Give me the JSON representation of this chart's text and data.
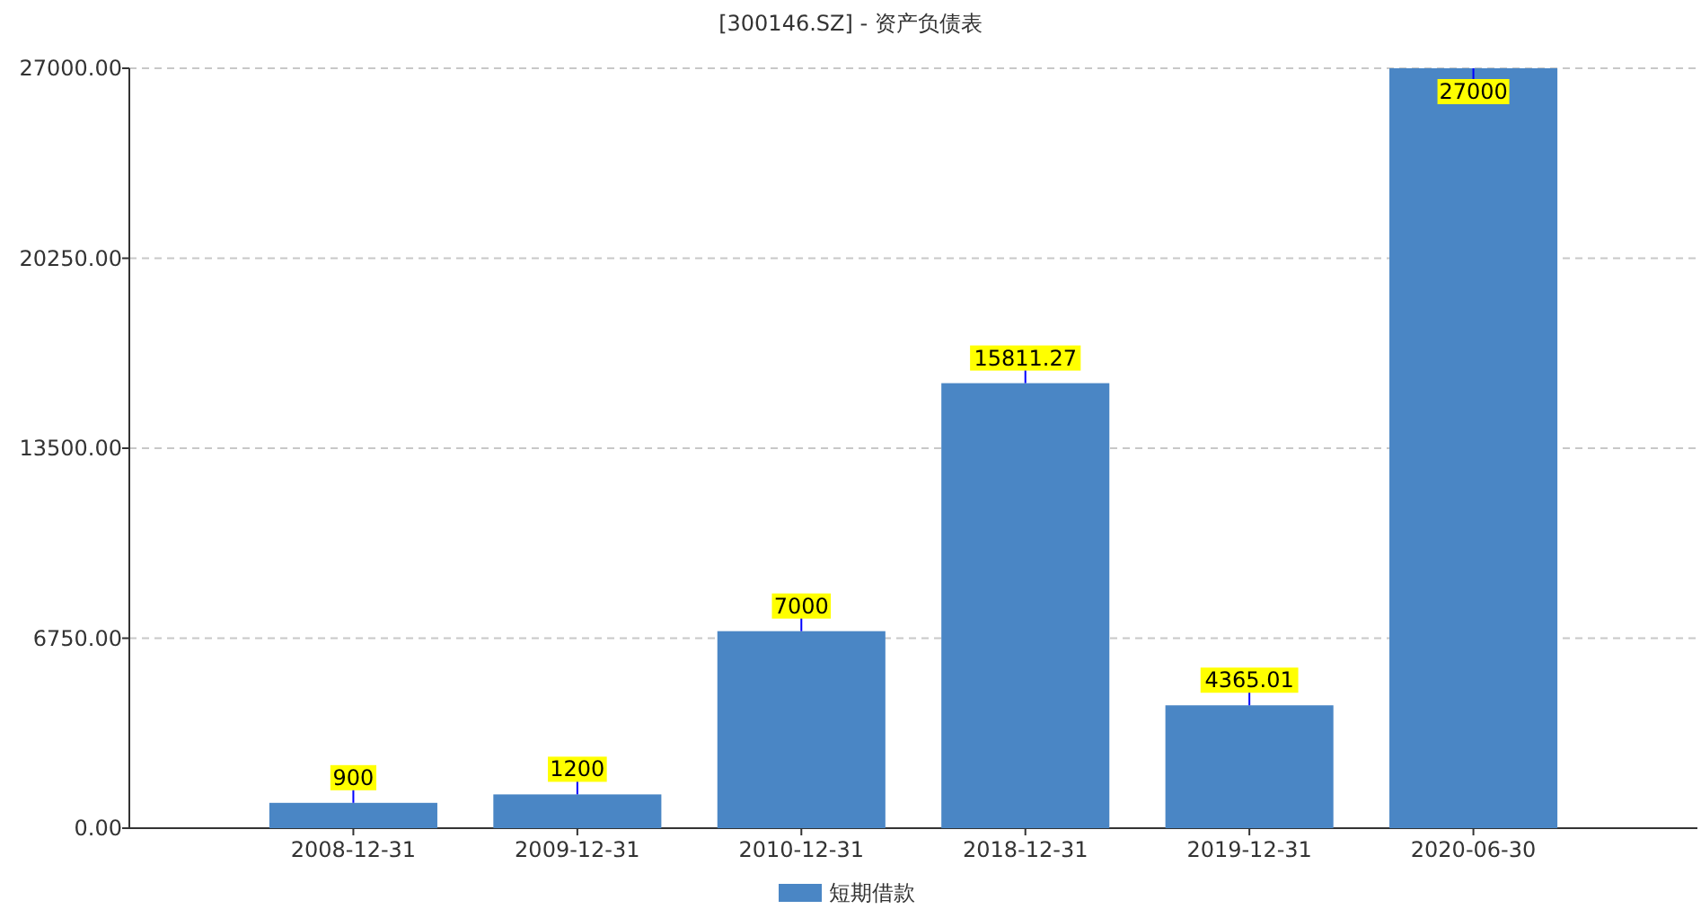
{
  "chart_data": {
    "type": "bar",
    "title": "[300146.SZ] - 资产负债表",
    "categories": [
      "2008-12-31",
      "2009-12-31",
      "2010-12-31",
      "2018-12-31",
      "2019-12-31",
      "2020-06-30"
    ],
    "series": [
      {
        "name": "短期借款",
        "color": "#4a86c5",
        "values": [
          900,
          1200,
          7000,
          15811.27,
          4365.01,
          27000
        ]
      }
    ],
    "ylim": [
      0,
      27000
    ],
    "yticks": [
      {
        "value": 0,
        "label": "0.00"
      },
      {
        "value": 6750,
        "label": "6750.00"
      },
      {
        "value": 13500,
        "label": "13500.00"
      },
      {
        "value": 20250,
        "label": "20250.00"
      },
      {
        "value": 27000,
        "label": "27000.00"
      }
    ],
    "grid": "y",
    "legend": "bottom",
    "data_labels": true
  }
}
